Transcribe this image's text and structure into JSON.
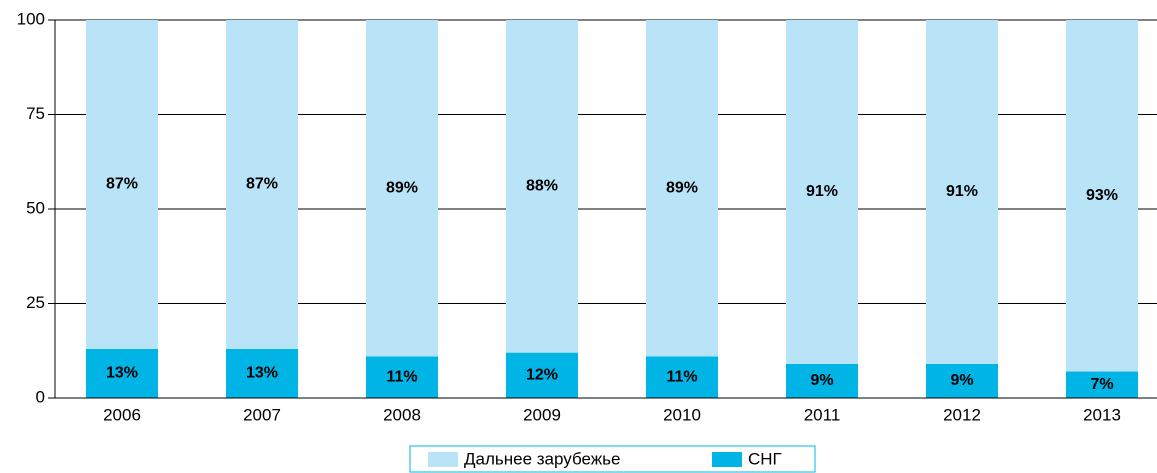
{
  "chart_data": {
    "type": "stacked_bar",
    "categories": [
      "2006",
      "2007",
      "2008",
      "2009",
      "2010",
      "2011",
      "2012",
      "2013"
    ],
    "series": [
      {
        "name": "Дальнее зарубежье",
        "color": "#b9e3f7",
        "values": [
          87,
          87,
          89,
          88,
          89,
          91,
          91,
          93
        ],
        "value_labels": [
          "87%",
          "87%",
          "89%",
          "88%",
          "89%",
          "91%",
          "91%",
          "93%"
        ]
      },
      {
        "name": "СНГ",
        "color": "#00b4e6",
        "values": [
          13,
          13,
          11,
          12,
          11,
          9,
          9,
          7
        ],
        "value_labels": [
          "13%",
          "13%",
          "11%",
          "12%",
          "11%",
          "9%",
          "9%",
          "7%"
        ]
      }
    ],
    "ylim": [
      0,
      100
    ],
    "yticks": [
      0,
      25,
      50,
      75,
      100
    ],
    "grid": true
  }
}
